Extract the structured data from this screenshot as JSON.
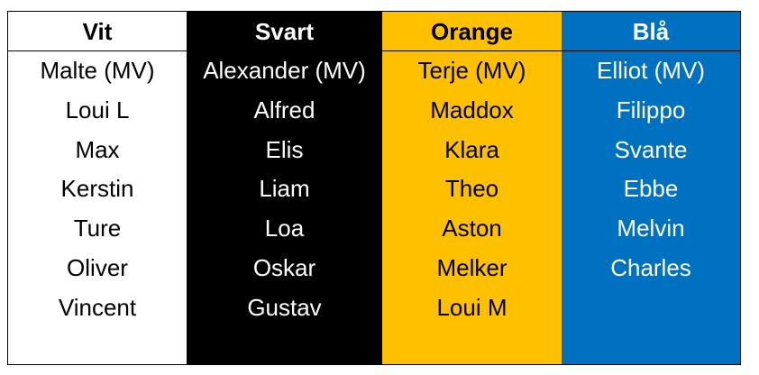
{
  "table": {
    "columns": [
      {
        "header": "Vit",
        "bg": "#FFFFFF",
        "fg": "#000000",
        "names": [
          "Malte (MV)",
          "Loui L",
          "Max",
          "Kerstin",
          "Ture",
          "Oliver",
          "Vincent"
        ]
      },
      {
        "header": "Svart",
        "bg": "#000000",
        "fg": "#FFFFFF",
        "names": [
          "Alexander (MV)",
          "Alfred",
          "Elis",
          "Liam",
          "Loa",
          "Oskar",
          "Gustav"
        ]
      },
      {
        "header": "Orange",
        "bg": "#FFC000",
        "fg": "#000000",
        "names": [
          "Terje (MV)",
          "Maddox",
          "Klara",
          "Theo",
          "Aston",
          "Melker",
          "Loui M"
        ]
      },
      {
        "header": "Blå",
        "bg": "#0070C0",
        "fg": "#FFFFFF",
        "names": [
          "Elliot (MV)",
          "Filippo",
          "Svante",
          "Ebbe",
          "Melvin",
          "Charles"
        ]
      }
    ]
  }
}
